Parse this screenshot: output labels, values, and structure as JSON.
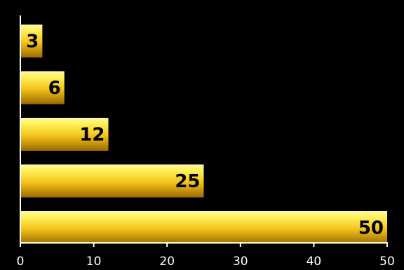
{
  "chart_data": {
    "type": "bar",
    "orientation": "horizontal",
    "categories": [
      "",
      "",
      "",
      "",
      ""
    ],
    "values": [
      3,
      6,
      12,
      25,
      50
    ],
    "data_labels": [
      "3",
      "6",
      "12",
      "25",
      "50"
    ],
    "title": "",
    "xlabel": "",
    "ylabel": "",
    "xlim": [
      0,
      50
    ],
    "xticks": [
      0,
      10,
      20,
      30,
      40,
      50
    ],
    "xtick_labels": [
      "0",
      "10",
      "20",
      "30",
      "40",
      "50"
    ],
    "grid": false,
    "legend": "none",
    "colors": {
      "background": "#000000",
      "axis": "#ffffff",
      "bar_light": "#fff25a",
      "bar_mid": "#f2c21a",
      "bar_dark": "#9c6a00",
      "label": "#000000"
    }
  }
}
